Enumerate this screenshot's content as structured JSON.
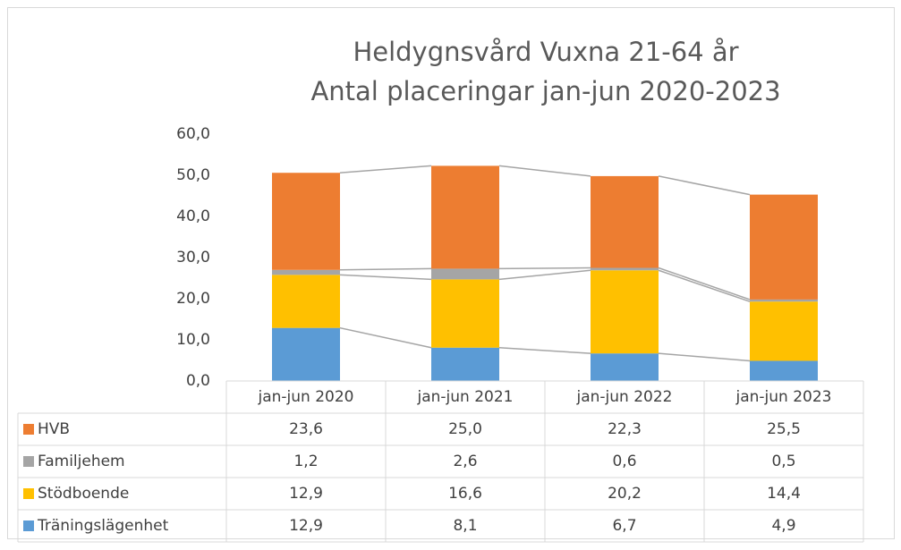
{
  "chart_data": {
    "type": "stacked-bar",
    "title": [
      "Heldygnsvård Vuxna 21-64 år",
      "Antal placeringar jan-jun 2020-2023"
    ],
    "categories": [
      "jan-jun 2020",
      "jan-jun 2021",
      "jan-jun 2022",
      "jan-jun 2023"
    ],
    "series": [
      {
        "name": "Träningslägenhet",
        "color": "#5b9bd5",
        "values": [
          12.9,
          8.1,
          6.7,
          4.9
        ],
        "value_labels": [
          "12,9",
          "8,1",
          "6,7",
          "4,9"
        ]
      },
      {
        "name": "Stödboende",
        "color": "#ffc000",
        "values": [
          12.9,
          16.6,
          20.2,
          14.4
        ],
        "value_labels": [
          "12,9",
          "16,6",
          "20,2",
          "14,4"
        ]
      },
      {
        "name": "Familjehem",
        "color": "#a5a5a5",
        "values": [
          1.2,
          2.6,
          0.6,
          0.5
        ],
        "value_labels": [
          "1,2",
          "2,6",
          "0,6",
          "0,5"
        ]
      },
      {
        "name": "HVB",
        "color": "#ed7d31",
        "values": [
          23.6,
          25.0,
          22.3,
          25.5
        ],
        "value_labels": [
          "23,6",
          "25,0",
          "22,3",
          "25,5"
        ]
      }
    ],
    "ylim": [
      0,
      60
    ],
    "yticks": [
      {
        "value": 0,
        "label": "0,0"
      },
      {
        "value": 10,
        "label": "10,0"
      },
      {
        "value": 20,
        "label": "20,0"
      },
      {
        "value": 30,
        "label": "30,0"
      },
      {
        "value": 40,
        "label": "40,0"
      },
      {
        "value": 50,
        "label": "50,0"
      },
      {
        "value": 60,
        "label": "60,0"
      }
    ],
    "series_lines": true,
    "data_table": true
  }
}
